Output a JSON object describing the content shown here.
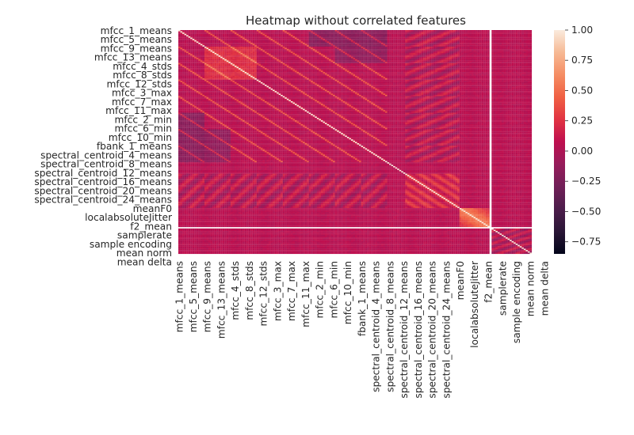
{
  "chart_data": {
    "type": "heatmap",
    "title": "Heatmap without correlated features",
    "xlabel": "",
    "ylabel": "",
    "y_tick_labels": [
      "mfcc_1_means",
      "mfcc_5_means",
      "mfcc_9_means",
      "mfcc_13_means",
      "mfcc_4_stds",
      "mfcc_8_stds",
      "mfcc_12_stds",
      "mfcc_3_max",
      "mfcc_7_max",
      "mfcc_11_max",
      "mfcc_2_min",
      "mfcc_6_min",
      "mfcc_10_min",
      "fbank_1_means",
      "spectral_centroid_4_means",
      "spectral_centroid_8_means",
      "spectral_centroid_12_means",
      "spectral_centroid_16_means",
      "spectral_centroid_20_means",
      "spectral_centroid_24_means",
      "meanF0",
      "localabsoluteJitter",
      "f2_mean",
      "samplerate",
      "sample encoding",
      "mean norm",
      "mean delta"
    ],
    "x_tick_labels": [
      "mfcc_1_means",
      "mfcc_5_means",
      "mfcc_9_means",
      "mfcc_13_means",
      "mfcc_4_stds",
      "mfcc_8_stds",
      "mfcc_12_stds",
      "mfcc_3_max",
      "mfcc_7_max",
      "mfcc_11_max",
      "mfcc_2_min",
      "mfcc_6_min",
      "mfcc_10_min",
      "fbank_1_means",
      "spectral_centroid_4_means",
      "spectral_centroid_8_means",
      "spectral_centroid_12_means",
      "spectral_centroid_16_means",
      "spectral_centroid_20_means",
      "spectral_centroid_24_means",
      "meanF0",
      "localabsoluteJitter",
      "f2_mean",
      "samplerate",
      "sample encoding",
      "mean norm",
      "mean delta"
    ],
    "colorbar": {
      "colormap": "rocket",
      "vmin": -0.85,
      "vmax": 1.0,
      "ticks": [
        1.0,
        0.75,
        0.5,
        0.25,
        0.0,
        -0.25,
        -0.5,
        -0.75
      ],
      "tick_labels": [
        "1.00",
        "0.75",
        "0.50",
        "0.25",
        "0.00",
        "−0.25",
        "−0.50",
        "−0.75"
      ]
    },
    "diagonal_value": 1.0,
    "constant_feature": "samplerate"
  }
}
